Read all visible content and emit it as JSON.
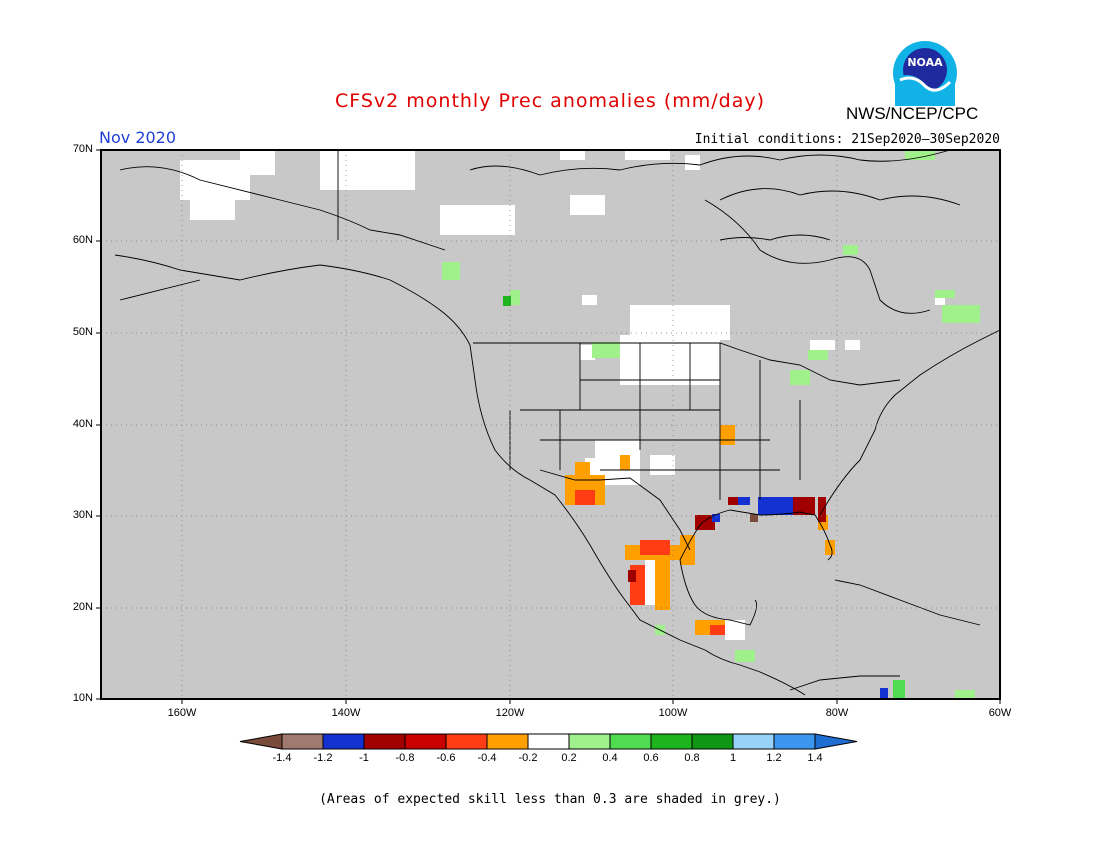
{
  "title": "CFSv2 monthly Prec anomalies (mm/day)",
  "agency": "NWS/NCEP/CPC",
  "logo_text": "NOAA",
  "month": "Nov 2020",
  "initial_conditions": "Initial conditions: 21Sep2020–30Sep2020",
  "lat_labels": [
    "70N",
    "60N",
    "50N",
    "40N",
    "30N",
    "20N",
    "10N"
  ],
  "lon_labels": [
    "160W",
    "140W",
    "120W",
    "100W",
    "80W",
    "60W"
  ],
  "colorbar": {
    "labels": [
      "-1.4",
      "-1.2",
      "-1",
      "-0.8",
      "-0.6",
      "-0.4",
      "-0.2",
      "0.2",
      "0.4",
      "0.6",
      "0.8",
      "1",
      "1.2",
      "1.4"
    ],
    "colors": [
      "#7a4a3a",
      "#a07a6e",
      "#1432d2",
      "#a00000",
      "#c80000",
      "#ff3c14",
      "#ffa000",
      "#ffffff",
      "#a0f08c",
      "#50dc50",
      "#1eb41e",
      "#0f9614",
      "#96d2fa",
      "#3c96f0",
      "#1e6ed2"
    ]
  },
  "note": "(Areas of expected skill less than 0.3 are shaded in grey.)",
  "map_extent": {
    "lon": [
      -170,
      -60
    ],
    "lat": [
      10,
      70
    ]
  },
  "colors": {
    "grey_background": "#c8c8c8",
    "title": "#e00000",
    "month": "#1f3fd8"
  }
}
